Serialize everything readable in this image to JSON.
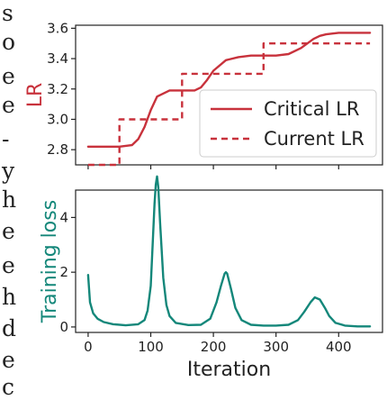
{
  "colors": {
    "critical": "#c8323c",
    "current": "#c8323c",
    "loss": "#14877a",
    "axis": "#222222"
  },
  "left_margin_glyphs": [
    "s",
    "o",
    "e",
    "e",
    "-",
    "y",
    "h",
    "e",
    "e",
    "h",
    "d",
    "e",
    "c"
  ],
  "chart_data": [
    {
      "type": "line",
      "title": "",
      "xlabel": "",
      "ylabel": "LR",
      "xlim": [
        -20,
        470
      ],
      "ylim": [
        2.7,
        3.62
      ],
      "yticks": [
        2.8,
        3.0,
        3.2,
        3.4,
        3.6
      ],
      "ytick_labels": [
        "2.8",
        "3.0",
        "3.2",
        "3.4",
        "3.6"
      ],
      "legend_position": "lower-right",
      "series": [
        {
          "name": "Critical LR",
          "style": "solid",
          "x": [
            0,
            50,
            70,
            80,
            90,
            100,
            110,
            130,
            150,
            170,
            180,
            190,
            200,
            220,
            240,
            260,
            280,
            300,
            320,
            340,
            350,
            360,
            370,
            380,
            400,
            420,
            450
          ],
          "y": [
            2.82,
            2.82,
            2.83,
            2.87,
            2.95,
            3.06,
            3.15,
            3.19,
            3.19,
            3.19,
            3.21,
            3.26,
            3.32,
            3.39,
            3.41,
            3.42,
            3.42,
            3.42,
            3.43,
            3.47,
            3.5,
            3.53,
            3.55,
            3.56,
            3.57,
            3.57,
            3.57
          ]
        },
        {
          "name": "Current LR",
          "style": "dashed",
          "x": [
            0,
            50,
            50,
            150,
            150,
            280,
            280,
            450
          ],
          "y": [
            2.7,
            2.7,
            3.0,
            3.0,
            3.3,
            3.3,
            3.5,
            3.5
          ]
        }
      ]
    },
    {
      "type": "line",
      "title": "",
      "xlabel": "Iteration",
      "ylabel": "Training loss",
      "xlim": [
        -20,
        470
      ],
      "ylim": [
        -0.2,
        5.0
      ],
      "xticks": [
        0,
        100,
        200,
        300,
        400
      ],
      "xtick_labels": [
        "0",
        "100",
        "200",
        "300",
        "400"
      ],
      "yticks": [
        0,
        2,
        4
      ],
      "ytick_labels": [
        "0",
        "2",
        "4"
      ],
      "series": [
        {
          "name": "",
          "style": "solid",
          "x": [
            0,
            3,
            8,
            15,
            25,
            40,
            60,
            80,
            90,
            95,
            100,
            103,
            106,
            108,
            110,
            112,
            115,
            120,
            125,
            130,
            140,
            160,
            180,
            195,
            205,
            212,
            218,
            220,
            222,
            228,
            235,
            245,
            260,
            280,
            300,
            320,
            335,
            345,
            355,
            362,
            370,
            378,
            385,
            395,
            410,
            430,
            450
          ],
          "y": [
            1.9,
            0.9,
            0.5,
            0.3,
            0.18,
            0.1,
            0.06,
            0.1,
            0.25,
            0.6,
            1.5,
            3.0,
            4.5,
            5.2,
            5.5,
            5.1,
            3.8,
            1.8,
            0.8,
            0.4,
            0.15,
            0.07,
            0.08,
            0.3,
            0.9,
            1.5,
            1.95,
            2.0,
            1.95,
            1.4,
            0.7,
            0.25,
            0.08,
            0.05,
            0.05,
            0.08,
            0.25,
            0.55,
            0.9,
            1.08,
            1.0,
            0.7,
            0.4,
            0.15,
            0.05,
            0.02,
            0.02
          ]
        }
      ]
    }
  ]
}
